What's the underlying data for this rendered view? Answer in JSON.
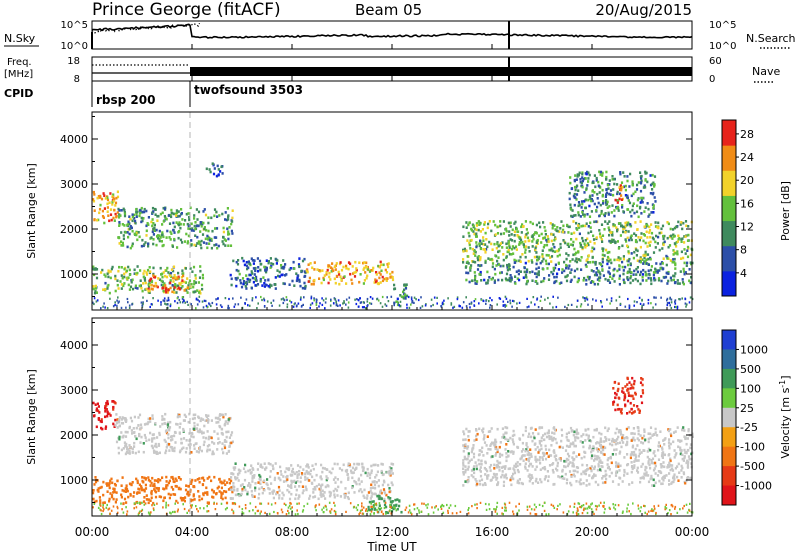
{
  "header": {
    "station": "Prince George (fitACF)",
    "beam": "Beam 05",
    "date": "20/Aug/2015"
  },
  "noise_panel": {
    "left_label": "N.Sky",
    "left_ticks": [
      "10^5",
      "10^0"
    ],
    "right_label": "N.Search",
    "right_ticks": [
      "10^5",
      "10^0"
    ]
  },
  "freq_panel": {
    "left_label_1": "Freq.",
    "left_label_2": "[MHz]",
    "left_ticks": [
      "18",
      "8"
    ],
    "right_label": "Nave",
    "right_ticks": [
      "60",
      "0"
    ]
  },
  "cpid": {
    "label": "CPID",
    "modes": [
      "rbsp 200",
      "twofsound 3503"
    ]
  },
  "x_axis": {
    "label": "Time UT",
    "ticks": [
      "00:00",
      "04:00",
      "08:00",
      "12:00",
      "16:00",
      "20:00",
      "00:00"
    ]
  },
  "colors": {
    "power_scale": [
      "#0b22e0",
      "#2c4fa8",
      "#3f8a5e",
      "#63c03c",
      "#f2d22a",
      "#f08c16",
      "#e7231b"
    ],
    "velocity_scale": [
      "#1f3fd2",
      "#2f6e9c",
      "#3f9a58",
      "#6ccb3e",
      "#c8c8c8",
      "#f3a014",
      "#f07514",
      "#e63a16",
      "#e0141a"
    ],
    "dashed_marker": "#b4b4b4"
  },
  "chart_data": [
    {
      "type": "heatmap",
      "title": "",
      "ylabel": "Slant Range [km]",
      "xlabel": "",
      "xlim_hours": [
        0,
        24
      ],
      "ylim": [
        200,
        4600
      ],
      "yticks": [
        1000,
        2000,
        3000,
        4000
      ],
      "colorbar": {
        "label": "Power [dB]",
        "ticks": [
          "4",
          "8",
          "12",
          "16",
          "20",
          "24",
          "28"
        ],
        "range": [
          0,
          30
        ]
      },
      "echo_regions": [
        {
          "t0": 0.0,
          "t1": 1.0,
          "r0": 2150,
          "r1": 2900,
          "value": 22
        },
        {
          "t0": 1.0,
          "t1": 5.6,
          "r0": 1600,
          "r1": 2500,
          "value": 12
        },
        {
          "t0": 0.0,
          "t1": 4.4,
          "r0": 600,
          "r1": 1200,
          "value": 14
        },
        {
          "t0": 2.2,
          "t1": 3.8,
          "r0": 600,
          "r1": 1000,
          "value": 24
        },
        {
          "t0": 5.5,
          "t1": 8.5,
          "r0": 700,
          "r1": 1400,
          "value": 8
        },
        {
          "t0": 8.5,
          "t1": 12.0,
          "r0": 800,
          "r1": 1300,
          "value": 22
        },
        {
          "t0": 12.0,
          "t1": 12.6,
          "r0": 300,
          "r1": 800,
          "value": 10
        },
        {
          "t0": 14.8,
          "t1": 24.0,
          "r0": 1300,
          "r1": 2200,
          "value": 14
        },
        {
          "t0": 14.8,
          "t1": 24.0,
          "r0": 800,
          "r1": 1300,
          "value": 10
        },
        {
          "t0": 19.0,
          "t1": 22.5,
          "r0": 2300,
          "r1": 3300,
          "value": 10
        },
        {
          "t0": 20.8,
          "t1": 21.2,
          "r0": 2600,
          "r1": 3000,
          "value": 24
        },
        {
          "t0": 4.5,
          "t1": 5.2,
          "r0": 3200,
          "r1": 3500,
          "value": 8
        }
      ]
    },
    {
      "type": "heatmap",
      "title": "",
      "ylabel": "Slant Range [km]",
      "xlabel": "Time UT",
      "xlim_hours": [
        0,
        24
      ],
      "ylim": [
        200,
        4600
      ],
      "yticks": [
        1000,
        2000,
        3000,
        4000
      ],
      "colorbar": {
        "label": "Velocity [m s^-1]",
        "ticks": [
          "1000",
          "500",
          "100",
          "25",
          "-25",
          "-100",
          "-500",
          "-1000"
        ]
      },
      "echo_regions": [
        {
          "t0": 0.0,
          "t1": 0.9,
          "r0": 2150,
          "r1": 2800,
          "value": -1000
        },
        {
          "t0": 0.9,
          "t1": 5.6,
          "r0": 1600,
          "r1": 2500,
          "value": 0
        },
        {
          "t0": 0.0,
          "t1": 5.6,
          "r0": 500,
          "r1": 1100,
          "value": -200
        },
        {
          "t0": 5.5,
          "t1": 12.0,
          "r0": 600,
          "r1": 1400,
          "value": 0
        },
        {
          "t0": 11.0,
          "t1": 12.4,
          "r0": 300,
          "r1": 700,
          "value": 200
        },
        {
          "t0": 14.8,
          "t1": 24.0,
          "r0": 900,
          "r1": 2200,
          "value": 0
        },
        {
          "t0": 20.8,
          "t1": 22.0,
          "r0": 2500,
          "r1": 3300,
          "value": -700
        }
      ]
    }
  ]
}
